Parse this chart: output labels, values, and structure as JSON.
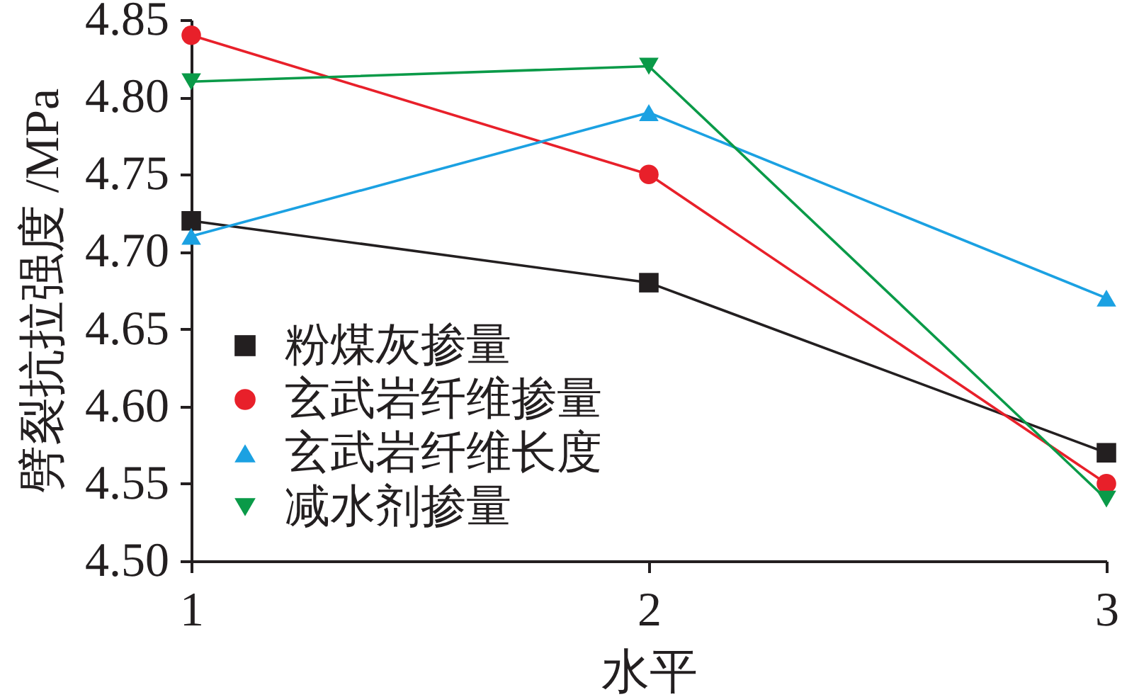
{
  "chart_data": {
    "type": "line",
    "xlabel": "水平",
    "ylabel": "劈裂抗拉强度 /MPa",
    "x": [
      1,
      2,
      3
    ],
    "xlim": [
      1,
      3
    ],
    "xticks": [
      1,
      2,
      3
    ],
    "ylim": [
      4.5,
      4.85
    ],
    "yticks": [
      {
        "value": 4.5,
        "label": "4.50"
      },
      4.55,
      {
        "value": 4.6,
        "label": "4.60"
      },
      4.65,
      {
        "value": 4.7,
        "label": "4.70"
      },
      4.75,
      {
        "value": 4.8,
        "label": "4.80"
      },
      4.85
    ],
    "grid": false,
    "legend": "bottom left",
    "line_style": "solid",
    "series": [
      {
        "name": "粉煤灰掺量",
        "color": "#231f20",
        "marker": "square",
        "values": [
          4.72,
          4.68,
          4.57
        ]
      },
      {
        "name": "玄武岩纤维掺量",
        "color": "#e8202a",
        "marker": "circle",
        "values": [
          4.84,
          4.75,
          4.55
        ]
      },
      {
        "name": "玄武岩纤维长度",
        "color": "#1ba1e2",
        "marker": "triangle",
        "values": [
          4.71,
          4.79,
          4.67
        ]
      },
      {
        "name": "减水剂掺量",
        "color": "#0a9a48",
        "marker": "triangle-down",
        "values": [
          4.81,
          4.82,
          4.54
        ]
      }
    ]
  }
}
